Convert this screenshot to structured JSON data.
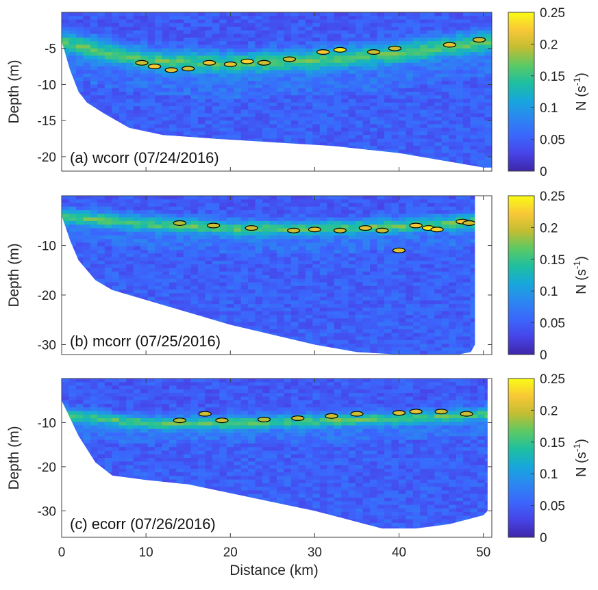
{
  "figure": {
    "xlabel": "Distance (km)",
    "colorbar_label_base": "N (s",
    "colorbar_label_exp": "-1",
    "colorbar_label_close": ")"
  },
  "colors": {
    "colormap": [
      "#3e26a8",
      "#4744e8",
      "#3b66fd",
      "#2c86f1",
      "#17a7dc",
      "#1ebfa0",
      "#5cc964",
      "#c2bd32",
      "#f9c836",
      "#f9fb15"
    ],
    "contour": "#000000",
    "axis": "#3c3c3c"
  },
  "chart_data": [
    {
      "type": "heatmap",
      "panel": "a",
      "title": "(a) wcorr (07/24/2016)",
      "xlabel": "",
      "ylabel": "Depth (m)",
      "xlim": [
        0,
        51
      ],
      "ylim": [
        -22,
        0
      ],
      "xticks": [],
      "yticks": [
        -5,
        -10,
        -15,
        -20
      ],
      "bottom_profile": {
        "x": [
          0,
          1,
          2,
          3,
          5,
          8,
          12,
          18,
          25,
          32,
          40,
          45,
          50,
          51
        ],
        "depth": [
          -4,
          -8,
          -11,
          -12.5,
          -14,
          -16,
          -17,
          -17.5,
          -18,
          -18.5,
          -19.5,
          -20.5,
          -21.5,
          -21.5
        ]
      },
      "pycnocline": {
        "x": [
          0,
          10,
          20,
          30,
          40,
          50
        ],
        "depth": [
          -4,
          -6.5,
          -7,
          -6.5,
          -5.5,
          -4
        ]
      },
      "high_n_patches": [
        {
          "x": 9.5,
          "depth": -7,
          "n": 0.2
        },
        {
          "x": 11,
          "depth": -7.5,
          "n": 0.22
        },
        {
          "x": 13,
          "depth": -8,
          "n": 0.21
        },
        {
          "x": 15,
          "depth": -7.8,
          "n": 0.2
        },
        {
          "x": 17.5,
          "depth": -7,
          "n": 0.22
        },
        {
          "x": 20,
          "depth": -7.2,
          "n": 0.21
        },
        {
          "x": 22,
          "depth": -6.8,
          "n": 0.23
        },
        {
          "x": 24,
          "depth": -7,
          "n": 0.2
        },
        {
          "x": 27,
          "depth": -6.5,
          "n": 0.2
        },
        {
          "x": 31,
          "depth": -5.5,
          "n": 0.22
        },
        {
          "x": 33,
          "depth": -5.2,
          "n": 0.24
        },
        {
          "x": 37,
          "depth": -5.5,
          "n": 0.2
        },
        {
          "x": 39.5,
          "depth": -5,
          "n": 0.2
        },
        {
          "x": 46,
          "depth": -4.5,
          "n": 0.21
        },
        {
          "x": 49.5,
          "depth": -3.8,
          "n": 0.2
        }
      ]
    },
    {
      "type": "heatmap",
      "panel": "b",
      "title": "(b) mcorr (07/25/2016)",
      "xlabel": "",
      "ylabel": "Depth (m)",
      "xlim": [
        0,
        51
      ],
      "ylim": [
        -32,
        0
      ],
      "xticks": [],
      "yticks": [
        -10,
        -20,
        -30
      ],
      "bottom_profile": {
        "x": [
          0,
          1,
          2,
          4,
          6,
          10,
          15,
          20,
          25,
          30,
          35,
          40,
          45,
          47,
          48.5,
          49
        ],
        "depth": [
          -4,
          -9,
          -13,
          -17,
          -19,
          -21,
          -23.5,
          -26,
          -28,
          -30,
          -31.5,
          -32,
          -32,
          -32,
          -31.5,
          -30
        ]
      },
      "pycnocline": {
        "x": [
          0,
          10,
          20,
          30,
          40,
          50
        ],
        "depth": [
          -4,
          -5.5,
          -6.5,
          -6.5,
          -6,
          -5
        ]
      },
      "high_n_patches": [
        {
          "x": 14,
          "depth": -5.5,
          "n": 0.19
        },
        {
          "x": 18,
          "depth": -6,
          "n": 0.2
        },
        {
          "x": 22.5,
          "depth": -6.5,
          "n": 0.2
        },
        {
          "x": 27.5,
          "depth": -7,
          "n": 0.2
        },
        {
          "x": 30,
          "depth": -6.8,
          "n": 0.21
        },
        {
          "x": 33,
          "depth": -7,
          "n": 0.2
        },
        {
          "x": 36,
          "depth": -6.5,
          "n": 0.21
        },
        {
          "x": 38,
          "depth": -7,
          "n": 0.2
        },
        {
          "x": 42,
          "depth": -6,
          "n": 0.22
        },
        {
          "x": 43.5,
          "depth": -6.5,
          "n": 0.24
        },
        {
          "x": 44.5,
          "depth": -6.8,
          "n": 0.23
        },
        {
          "x": 47.5,
          "depth": -5.2,
          "n": 0.22
        },
        {
          "x": 48.3,
          "depth": -5.5,
          "n": 0.2
        },
        {
          "x": 40,
          "depth": -11,
          "n": 0.21
        }
      ]
    },
    {
      "type": "heatmap",
      "panel": "c",
      "title": "(c) ecorr (07/26/2016)",
      "xlabel": "Distance (km)",
      "ylabel": "Depth (m)",
      "xlim": [
        0,
        51
      ],
      "ylim": [
        -36,
        0
      ],
      "xticks": [
        0,
        10,
        20,
        30,
        40,
        50
      ],
      "yticks": [
        -10,
        -20,
        -30
      ],
      "bottom_profile": {
        "x": [
          0,
          1,
          2,
          3,
          4,
          6,
          10,
          15,
          20,
          25,
          30,
          35,
          38,
          42,
          46,
          50,
          50.5
        ],
        "depth": [
          -5,
          -9,
          -13,
          -16,
          -19,
          -22,
          -23,
          -24,
          -26,
          -28,
          -30,
          -32.5,
          -34,
          -34,
          -33,
          -31,
          -30
        ]
      },
      "pycnocline": {
        "x": [
          0,
          10,
          20,
          30,
          40,
          50
        ],
        "depth": [
          -8,
          -10,
          -10,
          -9.5,
          -9,
          -8
        ]
      },
      "high_n_patches": [
        {
          "x": 14,
          "depth": -9.5,
          "n": 0.19
        },
        {
          "x": 17,
          "depth": -8,
          "n": 0.2
        },
        {
          "x": 19,
          "depth": -9.5,
          "n": 0.2
        },
        {
          "x": 24,
          "depth": -9.3,
          "n": 0.19
        },
        {
          "x": 28,
          "depth": -9,
          "n": 0.2
        },
        {
          "x": 32,
          "depth": -8.5,
          "n": 0.2
        },
        {
          "x": 35,
          "depth": -8,
          "n": 0.2
        },
        {
          "x": 40,
          "depth": -7.8,
          "n": 0.21
        },
        {
          "x": 42,
          "depth": -7.5,
          "n": 0.21
        },
        {
          "x": 45,
          "depth": -7.5,
          "n": 0.2
        },
        {
          "x": 48,
          "depth": -8,
          "n": 0.2
        }
      ]
    }
  ],
  "colorbar": {
    "range": [
      0,
      0.25
    ],
    "tick_values": [
      0,
      0.05,
      0.1,
      0.15,
      0.2,
      0.25
    ],
    "tick_labels": [
      "0",
      "0.05",
      "0.1",
      "0.15",
      "0.2",
      "0.25"
    ]
  }
}
